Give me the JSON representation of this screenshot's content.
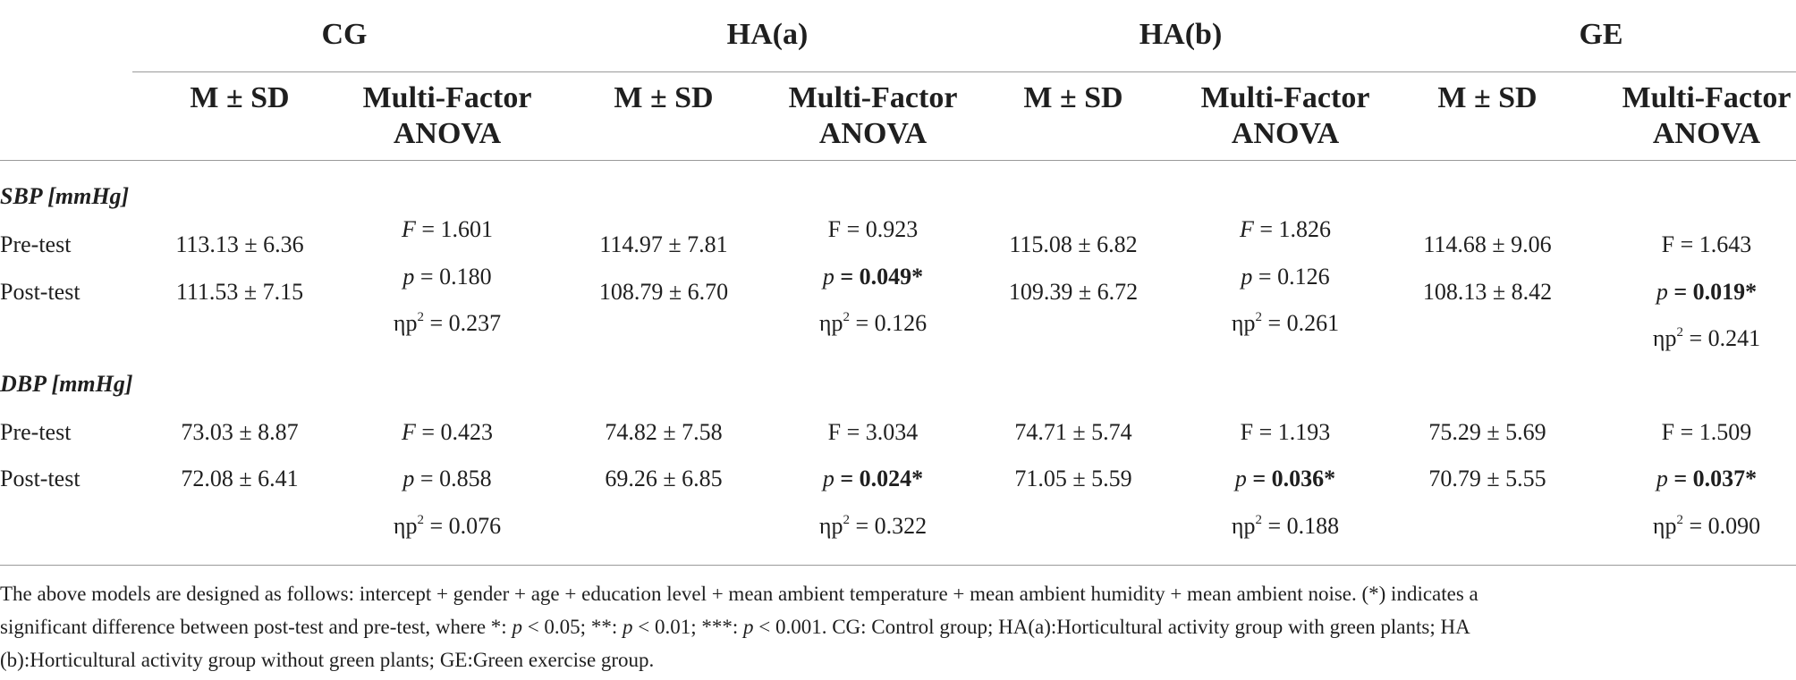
{
  "groups": [
    {
      "name": "CG",
      "ms": "M ± SD",
      "anova": [
        "Multi-Factor",
        "ANOVA"
      ]
    },
    {
      "name": "HA(a)",
      "ms": "M ± SD",
      "anova": [
        "Multi-Factor",
        "ANOVA"
      ]
    },
    {
      "name": "HA(b)",
      "ms": "M ± SD",
      "anova": [
        "Multi-Factor",
        "ANOVA"
      ]
    },
    {
      "name": "GE",
      "ms": "M ± SD",
      "anova": [
        "Multi-Factor",
        "ANOVA"
      ]
    }
  ],
  "sections": [
    {
      "title": "SBP [mmHg]",
      "pre_label": "Pre-test",
      "post_label": "Post-test",
      "cells": [
        {
          "pre": "113.13 ± 6.36",
          "post": "111.53 ± 7.15",
          "F": "= 1.601",
          "p": "= 0.180",
          "eta": "= 0.237"
        },
        {
          "pre": "114.97 ± 7.81",
          "post": "108.79 ± 6.70",
          "F": "= 0.923",
          "p": "= 0.049*",
          "eta": "= 0.126"
        },
        {
          "pre": "115.08 ± 6.82",
          "post": "109.39 ± 6.72",
          "F": "= 1.826",
          "p": "= 0.126",
          "eta": "= 0.261"
        },
        {
          "pre": "114.68 ± 9.06",
          "post": "108.13 ± 8.42",
          "F": "= 1.643",
          "p": "= 0.019*",
          "eta": "= 0.241"
        }
      ]
    },
    {
      "title": "DBP [mmHg]",
      "pre_label": "Pre-test",
      "post_label": "Post-test",
      "cells": [
        {
          "pre": "73.03 ± 8.87",
          "post": "72.08 ± 6.41",
          "F": "= 0.423",
          "p": "= 0.858",
          "eta": "= 0.076"
        },
        {
          "pre": "74.82 ± 7.58",
          "post": "69.26 ± 6.85",
          "F": "= 3.034",
          "p": "= 0.024*",
          "eta": "= 0.322"
        },
        {
          "pre": "74.71 ± 5.74",
          "post": "71.05 ± 5.59",
          "F": "= 1.193",
          "p": "= 0.036*",
          "eta": "= 0.188"
        },
        {
          "pre": "75.29 ± 5.69",
          "post": "70.79 ± 5.55",
          "F": "= 1.509",
          "p": "= 0.037*",
          "eta": "= 0.090"
        }
      ]
    }
  ],
  "symbols": {
    "F": "F",
    "p": "p",
    "eta": "ηp",
    "eta_sup": "2"
  },
  "footnote": [
    "The above models are designed as follows: intercept + gender + age + education level + mean ambient temperature + mean ambient humidity + mean ambient noise. (*) indicates a",
    "significant difference between post-test and pre-test, where *: ",
    "p",
    " < 0.05; **: ",
    "p",
    " < 0.01; ***: ",
    "p",
    " < 0.001. CG: Control group; HA(a):Horticultural activity group with green plants; HA",
    "(b):Horticultural activity group without green plants; GE:Green exercise group."
  ]
}
